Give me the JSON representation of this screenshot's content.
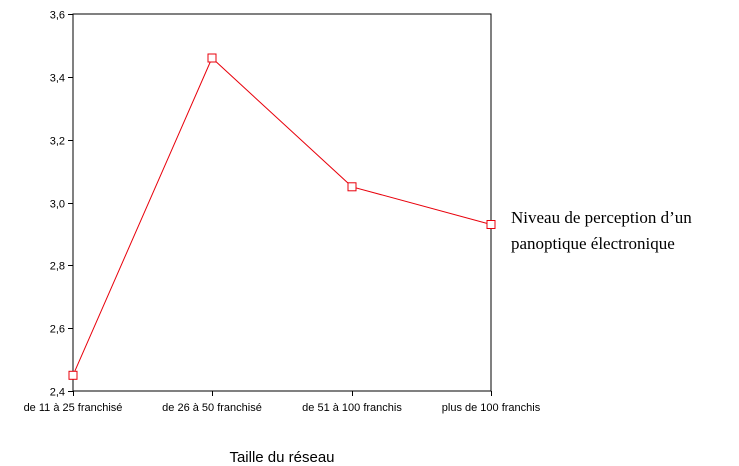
{
  "chart_data": {
    "type": "line",
    "categories": [
      "de 11 à 25 franchisé",
      "de 26 à 50 franchisé",
      "de 51 à 100 franchis",
      "plus de 100 franchis"
    ],
    "series": [
      {
        "name": "Niveau de perception d’un panoptique électronique",
        "values": [
          2.45,
          3.46,
          3.05,
          2.93
        ],
        "color": "#e8000b",
        "marker": "square"
      }
    ],
    "xlabel": "Taille du réseau",
    "ylabel": "",
    "ylim": [
      2.4,
      3.6
    ],
    "yticks": [
      "2,4",
      "2,6",
      "2,8",
      "3,0",
      "3,2",
      "3,4",
      "3,6"
    ],
    "legend": {
      "lines": [
        "Niveau de perception d’un",
        "panoptique électronique"
      ],
      "placement": "right"
    },
    "grid": false
  }
}
